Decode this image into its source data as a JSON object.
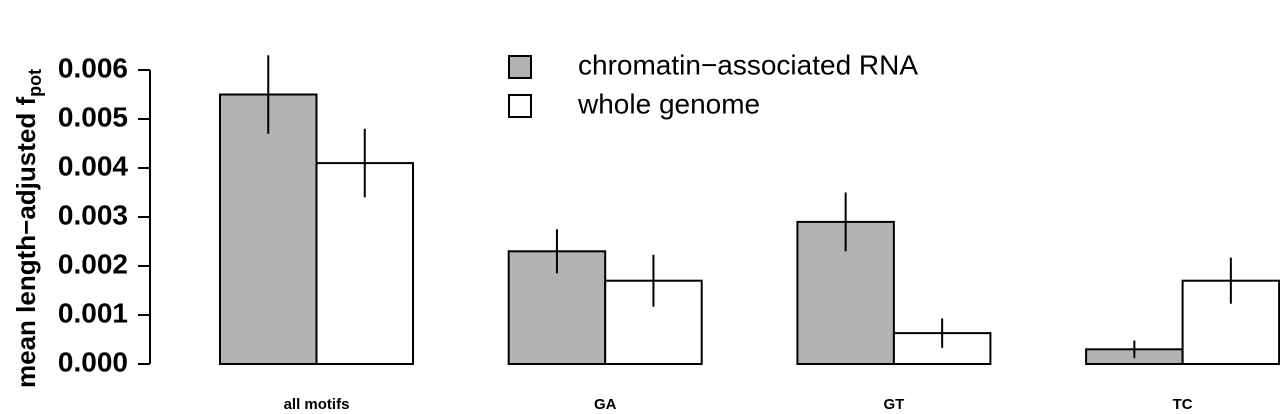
{
  "chart_data": {
    "type": "bar",
    "ylabel": "mean length−adjusted f",
    "ylabel_subscript": "pot",
    "categories": [
      "all motifs",
      "GA",
      "GT",
      "TC"
    ],
    "series": [
      {
        "name": "chromatin−associated RNA",
        "color": "#b3b3b3",
        "values": [
          0.0055,
          0.0023,
          0.0029,
          0.0003
        ],
        "errors": [
          0.0008,
          0.00045,
          0.0006,
          0.00018
        ]
      },
      {
        "name": "whole genome",
        "color": "#ffffff",
        "values": [
          0.0041,
          0.0017,
          0.00063,
          0.0017
        ],
        "errors": [
          0.0007,
          0.00053,
          0.0003,
          0.00047
        ]
      }
    ],
    "ylim": [
      0,
      0.006
    ],
    "yticks": [
      {
        "value": 0,
        "label": "0.000"
      },
      {
        "value": 0.001,
        "label": "0.001"
      },
      {
        "value": 0.002,
        "label": "0.002"
      },
      {
        "value": 0.003,
        "label": "0.003"
      },
      {
        "value": 0.004,
        "label": "0.004"
      },
      {
        "value": 0.005,
        "label": "0.005"
      },
      {
        "value": 0.006,
        "label": "0.006"
      }
    ]
  }
}
